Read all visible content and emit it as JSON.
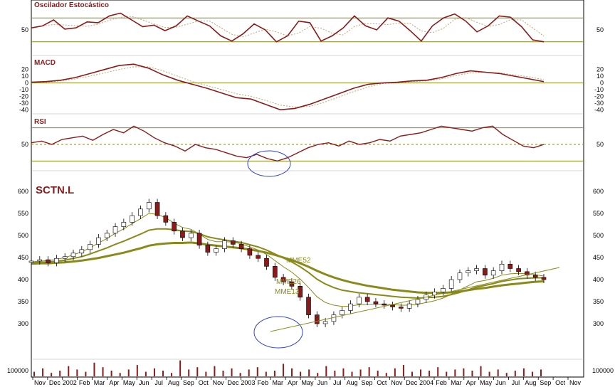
{
  "chart_data": {
    "type": "line",
    "ticker": "SCTN.L",
    "x": [
      "Nov",
      "Dec",
      "2002",
      "Feb",
      "Mar",
      "Apr",
      "May",
      "Jun",
      "Jul",
      "Aug",
      "Sep",
      "Oct",
      "Nov",
      "Dec",
      "2003",
      "Feb",
      "Mar",
      "Apr",
      "May",
      "Jun",
      "Jul",
      "Aug",
      "Sep",
      "Oct",
      "Nov",
      "Dec",
      "2004",
      "Feb",
      "Mar",
      "Apr",
      "May",
      "Jun",
      "Jul",
      "Aug",
      "Sep",
      "Oct",
      "Nov"
    ],
    "panels": {
      "stochastic": {
        "title": "Oscilador Estocástico",
        "y_ticks": [
          "50"
        ],
        "ylim": [
          0,
          100
        ],
        "levels": [
          80,
          20
        ],
        "values": [
          55,
          60,
          75,
          52,
          55,
          70,
          68,
          85,
          92,
          75,
          58,
          62,
          48,
          60,
          85,
          72,
          60,
          35,
          22,
          40,
          65,
          50,
          20,
          35,
          72,
          68,
          22,
          35,
          55,
          85,
          60,
          50,
          80,
          72,
          48,
          22,
          60,
          80,
          90,
          72,
          45,
          60,
          85,
          82,
          58,
          25,
          20
        ]
      },
      "macd": {
        "title": "MACD",
        "y_ticks": [
          "20",
          "10",
          "0",
          "-10",
          "-20",
          "-30",
          "-40"
        ],
        "ylim": [
          -45,
          25
        ],
        "macd": [
          1,
          2,
          4,
          8,
          14,
          20,
          26,
          28,
          22,
          12,
          4,
          -2,
          -8,
          -15,
          -22,
          -24,
          -32,
          -40,
          -38,
          -32,
          -24,
          -16,
          -8,
          -2,
          0,
          1,
          3,
          4,
          8,
          14,
          18,
          16,
          14,
          10,
          6,
          2
        ],
        "signal": [
          1,
          1,
          3,
          6,
          10,
          15,
          20,
          24,
          24,
          18,
          10,
          2,
          -4,
          -10,
          -16,
          -20,
          -26,
          -33,
          -36,
          -35,
          -29,
          -21,
          -13,
          -6,
          -1,
          0,
          2,
          3,
          6,
          11,
          15,
          16,
          15,
          12,
          9,
          5
        ]
      },
      "rsi": {
        "title": "RSI",
        "y_ticks": [
          "50"
        ],
        "ylim": [
          20,
          80
        ],
        "levels": [
          70,
          50,
          30
        ],
        "values": [
          52,
          54,
          50,
          56,
          58,
          60,
          55,
          62,
          68,
          64,
          72,
          66,
          58,
          52,
          48,
          42,
          50,
          46,
          44,
          40,
          36,
          34,
          38,
          33,
          30,
          34,
          40,
          46,
          50,
          52,
          48,
          54,
          50,
          52,
          56,
          54,
          60,
          62,
          64,
          68,
          72,
          70,
          68,
          66,
          70,
          72,
          62,
          55,
          48,
          46,
          50
        ]
      },
      "price": {
        "y_ticks": [
          "600",
          "550",
          "500",
          "450",
          "400",
          "350",
          "300"
        ],
        "ylim": [
          250,
          620
        ],
        "close": [
          442,
          445,
          438,
          448,
          452,
          460,
          468,
          480,
          495,
          505,
          520,
          530,
          545,
          560,
          575,
          545,
          530,
          510,
          495,
          505,
          478,
          462,
          470,
          488,
          480,
          470,
          455,
          448,
          430,
          405,
          395,
          385,
          360,
          320,
          300,
          305,
          320,
          330,
          345,
          360,
          350,
          345,
          342,
          338,
          335,
          345,
          355,
          365,
          372,
          380,
          400,
          415,
          420,
          425,
          410,
          420,
          435,
          425,
          418,
          410,
          405,
          400
        ],
        "mme13": [
          440,
          442,
          443,
          446,
          450,
          456,
          463,
          472,
          483,
          493,
          505,
          515,
          527,
          538,
          550,
          548,
          540,
          528,
          518,
          514,
          503,
          491,
          486,
          486,
          485,
          481,
          474,
          467,
          457,
          443,
          429,
          417,
          401,
          382,
          361,
          348,
          342,
          339,
          340,
          343,
          344,
          344,
          344,
          343,
          342,
          342,
          344,
          348,
          352,
          358,
          367,
          377,
          386,
          395,
          398,
          403,
          410,
          413,
          414,
          413,
          411,
          408
        ],
        "mme26": [
          438,
          439,
          440,
          442,
          444,
          448,
          452,
          458,
          465,
          472,
          480,
          487,
          495,
          503,
          512,
          515,
          515,
          513,
          510,
          509,
          504,
          497,
          493,
          490,
          487,
          484,
          479,
          474,
          467,
          458,
          449,
          440,
          429,
          416,
          401,
          390,
          382,
          376,
          373,
          370,
          368,
          366,
          364,
          362,
          360,
          359,
          358,
          359,
          360,
          362,
          366,
          371,
          377,
          383,
          387,
          391,
          396,
          399,
          402,
          403,
          404,
          404
        ],
        "mme52": [
          436,
          437,
          437,
          438,
          439,
          441,
          443,
          446,
          449,
          453,
          457,
          461,
          466,
          471,
          477,
          480,
          482,
          483,
          483,
          484,
          482,
          479,
          477,
          475,
          473,
          471,
          468,
          465,
          461,
          456,
          450,
          444,
          437,
          429,
          420,
          412,
          405,
          399,
          394,
          390,
          386,
          383,
          380,
          377,
          375,
          373,
          371,
          370,
          370,
          370,
          371,
          373,
          376,
          379,
          381,
          384,
          387,
          389,
          391,
          393,
          395,
          396
        ],
        "labels": [
          "MME52",
          "MME26",
          "MME13"
        ]
      },
      "volume": {
        "y_ticks": [
          "100000"
        ],
        "values": [
          4,
          7,
          3,
          5,
          9,
          6,
          4,
          12,
          8,
          5,
          3,
          6,
          10,
          4,
          7,
          5,
          3,
          14,
          6,
          8,
          4,
          9,
          5,
          7,
          3,
          6,
          8,
          4,
          5,
          11,
          7,
          4,
          6,
          3,
          9,
          5,
          7,
          4,
          6,
          8,
          5,
          3,
          7,
          10,
          4,
          6,
          5,
          8,
          4,
          6,
          7,
          5,
          9,
          4,
          6,
          3,
          5,
          7,
          4,
          6
        ]
      }
    },
    "colors": {
      "main_line": "#8b1a1a",
      "signal_line": "#c8a070",
      "band": "#8a8a1a",
      "ma": "#8a8a1a",
      "candle_up": "#ffffff",
      "candle_down": "#8b1a1a",
      "circle": "#3344cc"
    },
    "grid": false,
    "legend": "none"
  }
}
